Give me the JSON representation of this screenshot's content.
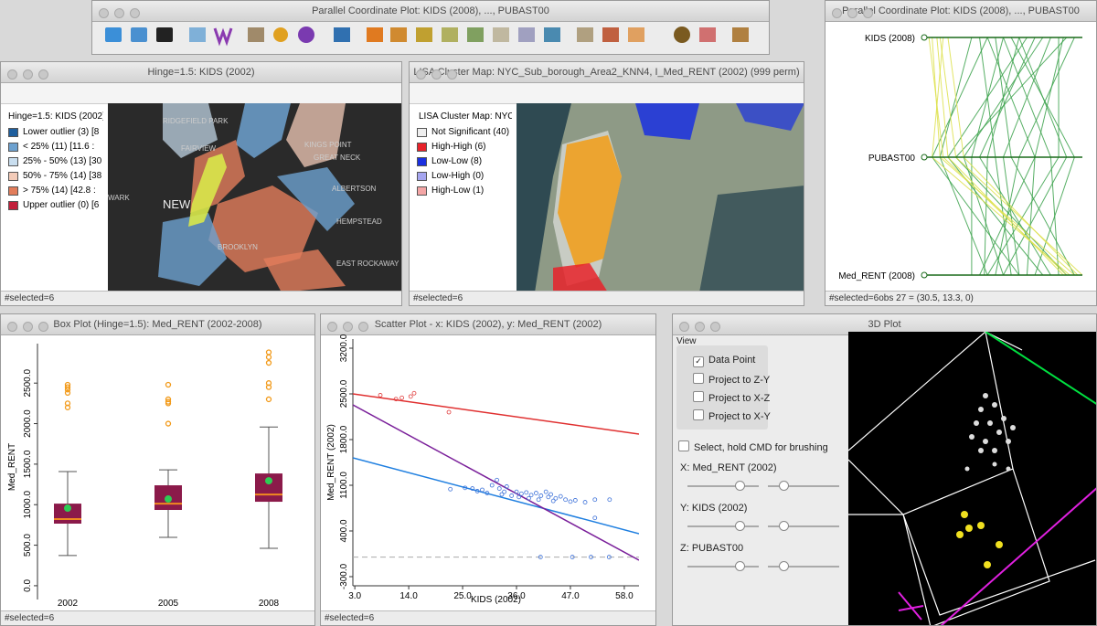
{
  "toolbar_window": {
    "title": "Parallel Coordinate Plot: KIDS (2008), ..., PUBAST00"
  },
  "hinge_map": {
    "title": "Hinge=1.5: KIDS (2002)",
    "legend_title": "Hinge=1.5: KIDS (2002)",
    "legend": [
      {
        "label": "Lower outlier (3) [8",
        "color": "#1f5f9e"
      },
      {
        "label": "< 25% (11) [11.6 : ",
        "color": "#6da1cf"
      },
      {
        "label": "25% - 50% (13) [30",
        "color": "#c9deef"
      },
      {
        "label": "50% - 75% (14) [38",
        "color": "#f3cbb8"
      },
      {
        "label": "> 75% (14) [42.8 : ",
        "color": "#e27d5b"
      },
      {
        "label": "Upper outlier (0) [6",
        "color": "#c21f3b"
      }
    ],
    "places": [
      "RIDGEFIELD PARK",
      "FAIRVIEW",
      "KINGS POINT",
      "GREAT NECK",
      "ALBERTSON",
      "HEMPSTEAD",
      "EAST ROCKAWAY",
      "BROOKLYN",
      "NEW",
      "WARK"
    ],
    "status": "#selected=6"
  },
  "lisa_map": {
    "title": "LISA Cluster Map: NYC_Sub_borough_Area2_KNN4, I_Med_RENT (2002) (999 perm)",
    "legend_title": "LISA Cluster Map: NYC_",
    "legend": [
      {
        "label": "Not Significant (40)",
        "color": "#eeeeee"
      },
      {
        "label": "High-High (6)",
        "color": "#e8222a"
      },
      {
        "label": "Low-Low (8)",
        "color": "#1a30e0"
      },
      {
        "label": "Low-High (0)",
        "color": "#a6a6f0"
      },
      {
        "label": "High-Low (1)",
        "color": "#f4a6a6"
      }
    ],
    "status": "#selected=6"
  },
  "pcp": {
    "title": "Parallel Coordinate Plot: KIDS (2008), ..., PUBAST00",
    "axes": [
      "KIDS (2008)",
      "PUBAST00",
      "Med_RENT (2008)"
    ],
    "color": "#3aa14a",
    "selected_color": "#dde04a",
    "lines": [
      [
        0.3,
        0.1,
        0.4
      ],
      [
        0.5,
        0.3,
        0.3
      ],
      [
        0.6,
        0.9,
        0.5
      ],
      [
        0.8,
        0.5,
        0.6
      ],
      [
        0.9,
        0.2,
        0.9
      ],
      [
        0.4,
        0.7,
        0.35
      ],
      [
        0.55,
        0.95,
        0.7
      ],
      [
        0.7,
        0.35,
        0.8
      ],
      [
        0.95,
        0.6,
        0.45
      ],
      [
        0.35,
        0.45,
        0.55
      ],
      [
        0.65,
        0.15,
        0.75
      ],
      [
        0.85,
        0.85,
        0.4
      ],
      [
        0.45,
        0.55,
        0.95
      ],
      [
        0.75,
        0.25,
        0.5
      ],
      [
        0.5,
        0.8,
        0.85
      ],
      [
        0.6,
        0.4,
        0.38
      ],
      [
        0.88,
        0.7,
        0.65
      ],
      [
        0.4,
        0.05,
        0.6
      ]
    ],
    "selected_lines": [
      [
        0.05,
        0.1,
        0.95
      ],
      [
        0.08,
        0.15,
        0.88
      ],
      [
        0.12,
        0.05,
        0.92
      ],
      [
        0.1,
        0.2,
        1
      ],
      [
        0.03,
        0.12,
        0.9
      ],
      [
        0.15,
        0.25,
        0.97
      ]
    ],
    "status": "#selected=6obs 27 = (30.5, 13.3, 0)"
  },
  "box_plot": {
    "title": "Box Plot (Hinge=1.5): Med_RENT (2002-2008)",
    "y_label": "Med_RENT",
    "ylim": [
      -170,
      3100
    ],
    "yticks": [
      {
        "value": 0,
        "label": "0.0"
      },
      {
        "value": 500,
        "label": "500.0"
      },
      {
        "value": 1000,
        "label": "1000.0"
      },
      {
        "value": 1500,
        "label": "1500.0"
      },
      {
        "value": 2000,
        "label": "2000.0"
      },
      {
        "value": 2500,
        "label": "2500.0"
      }
    ],
    "categories": [
      "2002",
      "2005",
      "2008"
    ],
    "box_color": "#8b1a4a",
    "median_color": "#f08a20",
    "mean_color": "#2ecc55",
    "outlier_color": "#f29a1a",
    "boxes": [
      {
        "low": 372,
        "q1": 766,
        "median": 822,
        "q3": 1013,
        "high": 1408,
        "mean": 957,
        "outliers": [
          2480,
          2450,
          2420,
          2380,
          2250,
          2200
        ]
      },
      {
        "low": 597,
        "q1": 935,
        "median": 1013,
        "q3": 1239,
        "high": 1430,
        "mean": 1070,
        "outliers": [
          2480,
          2300,
          2270,
          2250,
          2000
        ]
      },
      {
        "low": 462,
        "q1": 1036,
        "median": 1126,
        "q3": 1385,
        "high": 1959,
        "mean": 1295,
        "outliers": [
          2880,
          2820,
          2750,
          2500,
          2450,
          2300
        ]
      }
    ],
    "status": "#selected=6"
  },
  "scatter": {
    "title": "Scatter Plot - x: KIDS (2002), y: Med_RENT (2002)",
    "x_label": "KIDS (2002)",
    "y_label": "Med_RENT (2002)",
    "xlim": [
      2.6,
      61
    ],
    "ylim": [
      -440,
      3340
    ],
    "xticks": [
      {
        "value": 3,
        "label": "3.0"
      },
      {
        "value": 14,
        "label": "14.0"
      },
      {
        "value": 25,
        "label": "25.0"
      },
      {
        "value": 36,
        "label": "36.0"
      },
      {
        "value": 47,
        "label": "47.0"
      },
      {
        "value": 58,
        "label": "58.0"
      }
    ],
    "yticks": [
      {
        "value": -300,
        "label": "-300.0"
      },
      {
        "value": 400,
        "label": "400.0"
      },
      {
        "value": 1100,
        "label": "1100.0"
      },
      {
        "value": 1800,
        "label": "1800.0"
      },
      {
        "value": 2500,
        "label": "2500.0"
      },
      {
        "value": 3200,
        "label": "3200.0"
      }
    ],
    "points": {
      "color": "#3a6fd8",
      "x": [
        22.5,
        25.5,
        27,
        28,
        29,
        30,
        31,
        32,
        32.5,
        33,
        33.5,
        34,
        35,
        36,
        36.5,
        37,
        38,
        38.5,
        39,
        40,
        40.5,
        41,
        42,
        42.5,
        43,
        43.5,
        44,
        45,
        46,
        47,
        48,
        50,
        52,
        55,
        52,
        40.9,
        47.4,
        51.2,
        54.9
      ],
      "y": [
        1040,
        1060,
        1050,
        1010,
        1030,
        980,
        1100,
        1180,
        1050,
        960,
        1000,
        1080,
        940,
        1000,
        920,
        970,
        990,
        900,
        950,
        980,
        880,
        940,
        1000,
        920,
        960,
        860,
        900,
        930,
        880,
        850,
        870,
        840,
        880,
        880,
        600,
        0,
        0,
        0,
        0
      ]
    },
    "selected_points": {
      "color": "#e03a3a",
      "x": [
        8.2,
        11.4,
        12.6,
        14.4,
        15.1,
        22.2
      ],
      "y": [
        2480,
        2420,
        2440,
        2460,
        2510,
        2220
      ]
    },
    "baseline": 0,
    "fits": [
      {
        "color": "#e03030",
        "y": [
          2500,
          1884
        ]
      },
      {
        "color": "#1f7fe0",
        "y": [
          1520,
          358
        ]
      },
      {
        "color": "#7a1f9a",
        "y": [
          2332,
          -48
        ]
      }
    ],
    "status": "#selected=6"
  },
  "plot3d": {
    "title": "3D Plot",
    "menu": "View",
    "options": [
      "Data Point",
      "Project to Z-Y",
      "Project to X-Z",
      "Project to X-Y"
    ],
    "select": "Select, hold CMD for brushing",
    "axes": [
      "X: Med_RENT (2002)",
      "Y: KIDS (2002)",
      "Z: PUBAST00"
    ]
  }
}
